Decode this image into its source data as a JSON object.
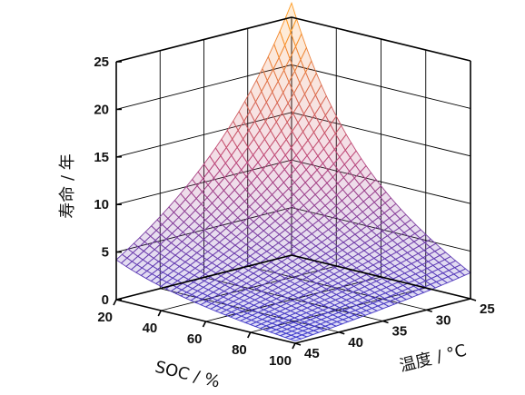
{
  "chart_data": {
    "type": "surface3d",
    "title": "",
    "xlabel": "SOC / %",
    "ylabel": "温度 / °C",
    "zlabel": "寿命 / 年",
    "x_ticks": [
      20,
      40,
      60,
      80,
      100
    ],
    "y_ticks": [
      25,
      30,
      35,
      40,
      45
    ],
    "z_ticks": [
      0,
      5,
      10,
      15,
      20,
      25
    ],
    "xlim": [
      20,
      100
    ],
    "ylim": [
      25,
      45
    ],
    "zlim": [
      0,
      25
    ],
    "surface_samples": [
      {
        "soc": 20,
        "temp": 25,
        "life": 26.5
      },
      {
        "soc": 20,
        "temp": 45,
        "life": 5.3
      },
      {
        "soc": 100,
        "temp": 25,
        "life": 5.1
      },
      {
        "soc": 100,
        "temp": 45,
        "life": 0.3
      },
      {
        "soc": 60,
        "temp": 35,
        "life": 4.0
      }
    ],
    "colormap": {
      "low": "#3a3acf",
      "high": "#ff9a20"
    },
    "grid": true
  }
}
